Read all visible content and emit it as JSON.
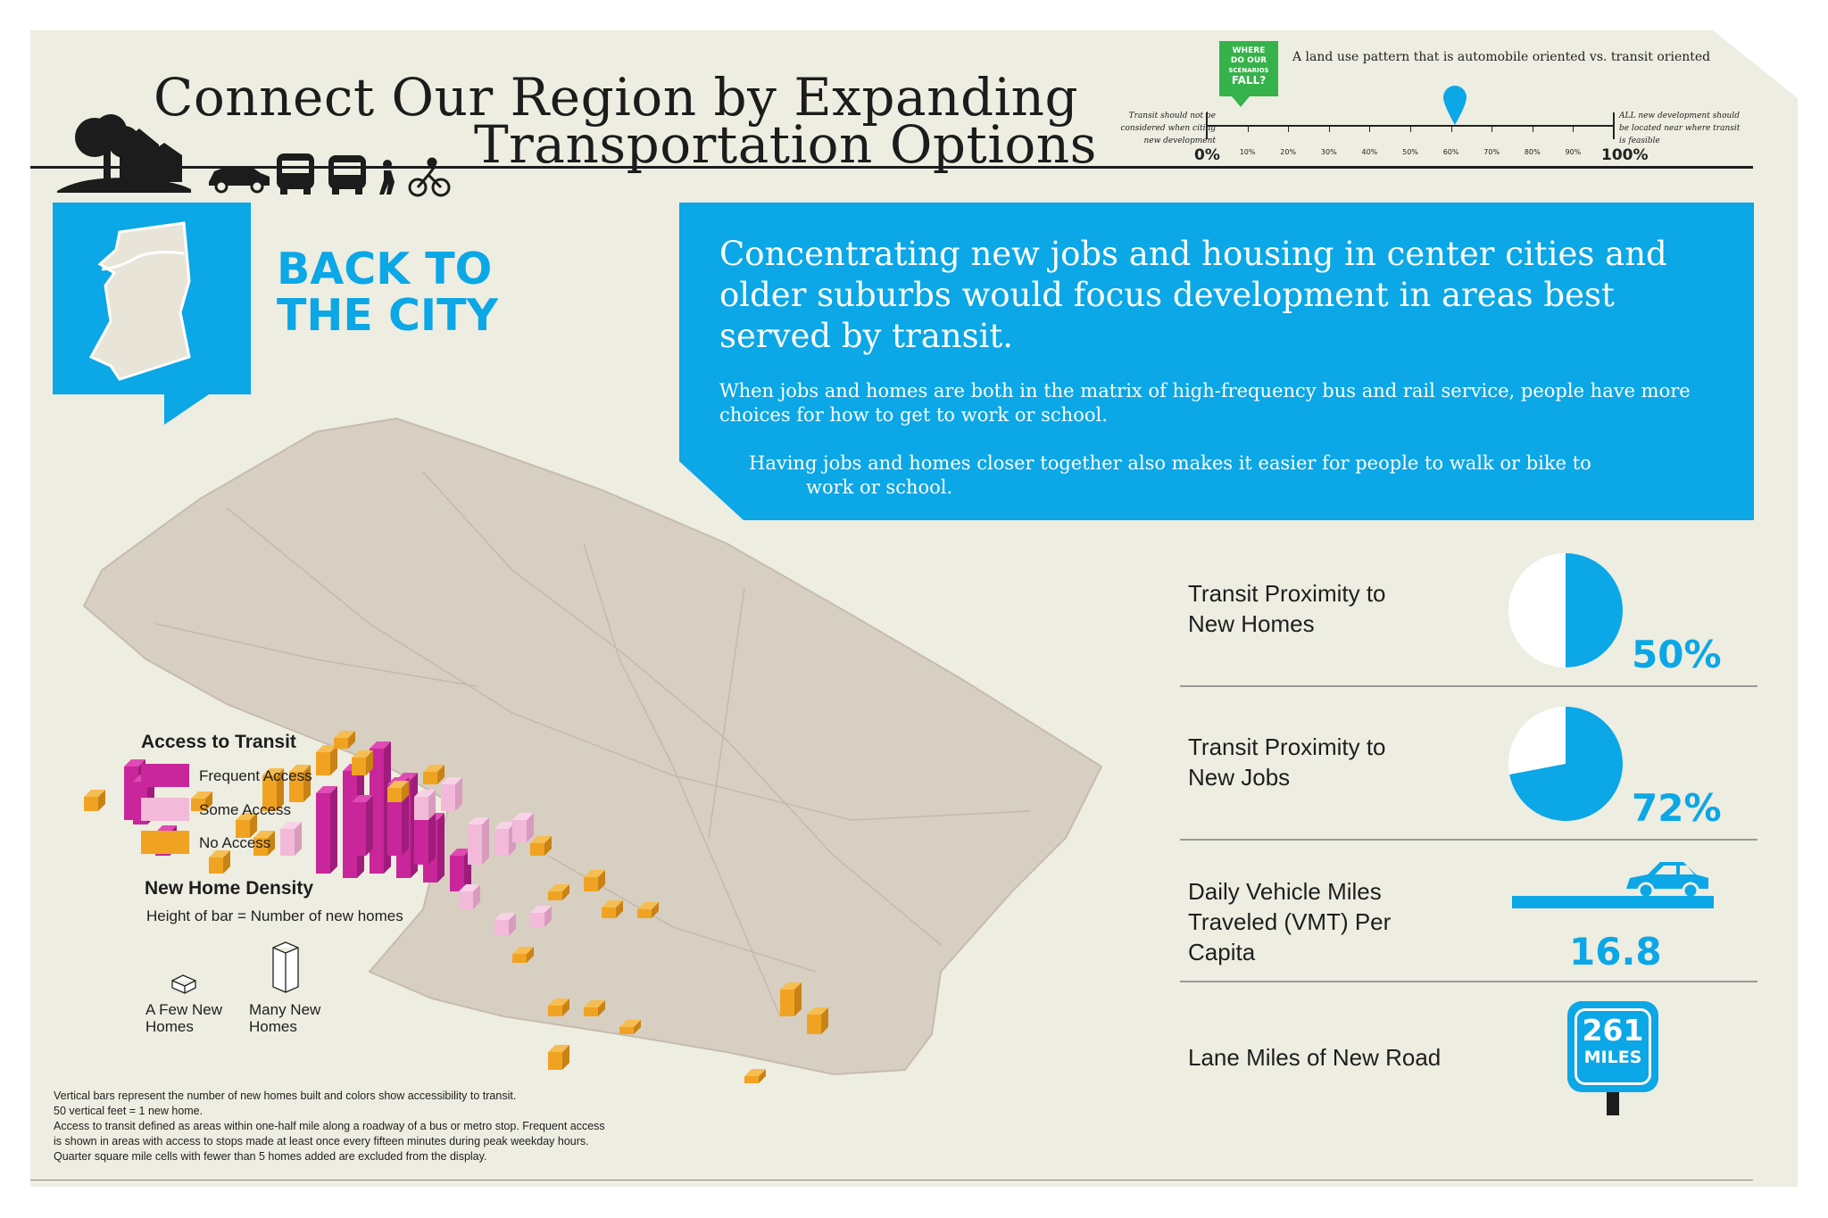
{
  "header": {
    "title_line1": "Connect Our Region by Expanding",
    "title_line2": "Transportation Options"
  },
  "scale": {
    "badge_lines": [
      "WHERE",
      "DO OUR",
      "SCENARIOS",
      "FALL?"
    ],
    "description": "A land use pattern that is automobile oriented vs. transit oriented",
    "left_note": [
      "Transit should not be",
      "considered when citing",
      "new development"
    ],
    "right_note": [
      "ALL new development should",
      "be located near where transit",
      "is feasible"
    ],
    "min_label": "0%",
    "max_label": "100%",
    "ticks": [
      "10%",
      "20%",
      "30%",
      "40%",
      "50%",
      "60%",
      "70%",
      "80%",
      "90%"
    ],
    "marker_value_percent": 61
  },
  "scenario": {
    "heading_line1": "BACK TO",
    "heading_line2": "THE CITY"
  },
  "intro": {
    "headline": "Concentrating new jobs and housing in center cities and older suburbs would focus development in areas best served by transit.",
    "paragraph1": "When jobs and homes are both in the matrix of high-frequency bus and rail service, people have more choices for how to get to work or school.",
    "paragraph2_line1": "Having jobs and homes closer together also makes it easier for people to walk or bike to",
    "paragraph2_line2": "work or school."
  },
  "legend": {
    "access_title": "Access to Transit",
    "items": [
      {
        "label": "Frequent Access",
        "color": "#c8269a"
      },
      {
        "label": "Some Access",
        "color": "#f2b9d8"
      },
      {
        "label": "No Access",
        "color": "#f0a322"
      }
    ],
    "density_title": "New Home Density",
    "density_subtitle": "Height of bar = Number of new homes",
    "few_label": [
      "A Few New",
      "Homes"
    ],
    "many_label": [
      "Many New",
      "Homes"
    ]
  },
  "footnotes": [
    "Vertical bars represent the number of new homes built and colors show accessibility to transit.",
    "50 vertical feet = 1 new home.",
    "Access to transit defined as areas within one-half mile along a roadway of a bus or metro stop. Frequent access",
    "is shown in areas with access to stops made at least once every fifteen minutes during peak weekday hours.",
    "Quarter square mile cells with fewer than 5 homes added are excluded from the display."
  ],
  "metrics": {
    "homes": {
      "label_line1": "Transit Proximity to",
      "label_line2": "New Homes",
      "value": "50%",
      "fraction": 0.5
    },
    "jobs": {
      "label_line1": "Transit Proximity to",
      "label_line2": "New Jobs",
      "value": "72%",
      "fraction": 0.72
    },
    "vmt": {
      "label_line1": "Daily Vehicle Miles",
      "label_line2": "Traveled (VMT) Per",
      "label_line3": "Capita",
      "value": "16.8"
    },
    "road": {
      "label": "Lane Miles of New Road",
      "sign_number": "261",
      "sign_unit": "MILES"
    }
  },
  "colors": {
    "accent_blue": "#0ba7e6",
    "frequent": "#c8269a",
    "some": "#f2b9d8",
    "none": "#f0a322",
    "background": "#eeede1",
    "map_land": "#d7cfc2"
  },
  "icons": [
    "house-tree-silhouette-icon",
    "car-icon",
    "bus-icon",
    "pedestrian-icon",
    "bicycle-icon",
    "location-pin-icon",
    "county-outline-icon",
    "pie-chart-icon",
    "road-sign-icon"
  ]
}
